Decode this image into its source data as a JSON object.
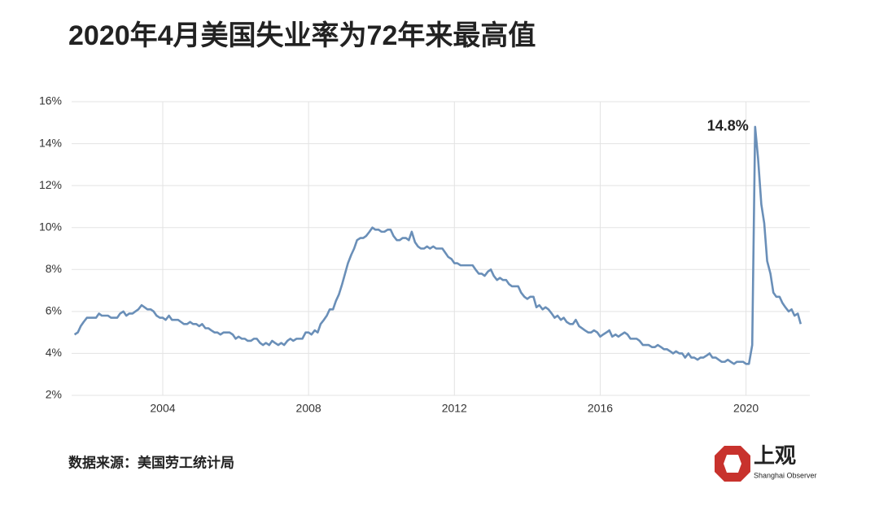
{
  "chart_data": {
    "type": "line",
    "title": "2020年4月美国失业率为72年来最高值",
    "source": "数据来源：美国劳工统计局",
    "logo": {
      "text": "上观",
      "subtitle": "Shanghai Observer"
    },
    "color": "#6a8fb8",
    "grid": true,
    "xlim": [
      2001.5,
      2021.75
    ],
    "xticks": [
      2004,
      2008,
      2012,
      2016,
      2020
    ],
    "ylim": [
      2,
      16
    ],
    "yticks": [
      {
        "value": 2,
        "label": "2%"
      },
      {
        "value": 4,
        "label": "4%"
      },
      {
        "value": 6,
        "label": "6%"
      },
      {
        "value": 8,
        "label": "8%"
      },
      {
        "value": 10,
        "label": "10%"
      },
      {
        "value": 12,
        "label": "12%"
      },
      {
        "value": 14,
        "label": "14%"
      },
      {
        "value": 16,
        "label": "16%"
      }
    ],
    "annotations": [
      {
        "text": "14.8%",
        "x": 2020.25,
        "y": 14.8
      }
    ],
    "x": [
      2001.58,
      2001.67,
      2001.75,
      2001.83,
      2001.92,
      2002.0,
      2002.08,
      2002.17,
      2002.25,
      2002.33,
      2002.42,
      2002.5,
      2002.58,
      2002.67,
      2002.75,
      2002.83,
      2002.92,
      2003.0,
      2003.08,
      2003.17,
      2003.25,
      2003.33,
      2003.42,
      2003.5,
      2003.58,
      2003.67,
      2003.75,
      2003.83,
      2003.92,
      2004.0,
      2004.08,
      2004.17,
      2004.25,
      2004.33,
      2004.42,
      2004.5,
      2004.58,
      2004.67,
      2004.75,
      2004.83,
      2004.92,
      2005.0,
      2005.08,
      2005.17,
      2005.25,
      2005.33,
      2005.42,
      2005.5,
      2005.58,
      2005.67,
      2005.75,
      2005.83,
      2005.92,
      2006.0,
      2006.08,
      2006.17,
      2006.25,
      2006.33,
      2006.42,
      2006.5,
      2006.58,
      2006.67,
      2006.75,
      2006.83,
      2006.92,
      2007.0,
      2007.08,
      2007.17,
      2007.25,
      2007.33,
      2007.42,
      2007.5,
      2007.58,
      2007.67,
      2007.75,
      2007.83,
      2007.92,
      2008.0,
      2008.08,
      2008.17,
      2008.25,
      2008.33,
      2008.42,
      2008.5,
      2008.58,
      2008.67,
      2008.75,
      2008.83,
      2008.92,
      2009.0,
      2009.08,
      2009.17,
      2009.25,
      2009.33,
      2009.42,
      2009.5,
      2009.58,
      2009.67,
      2009.75,
      2009.83,
      2009.92,
      2010.0,
      2010.08,
      2010.17,
      2010.25,
      2010.33,
      2010.42,
      2010.5,
      2010.58,
      2010.67,
      2010.75,
      2010.83,
      2010.92,
      2011.0,
      2011.08,
      2011.17,
      2011.25,
      2011.33,
      2011.42,
      2011.5,
      2011.58,
      2011.67,
      2011.75,
      2011.83,
      2011.92,
      2012.0,
      2012.08,
      2012.17,
      2012.25,
      2012.33,
      2012.42,
      2012.5,
      2012.58,
      2012.67,
      2012.75,
      2012.83,
      2012.92,
      2013.0,
      2013.08,
      2013.17,
      2013.25,
      2013.33,
      2013.42,
      2013.5,
      2013.58,
      2013.67,
      2013.75,
      2013.83,
      2013.92,
      2014.0,
      2014.08,
      2014.17,
      2014.25,
      2014.33,
      2014.42,
      2014.5,
      2014.58,
      2014.67,
      2014.75,
      2014.83,
      2014.92,
      2015.0,
      2015.08,
      2015.17,
      2015.25,
      2015.33,
      2015.42,
      2015.5,
      2015.58,
      2015.67,
      2015.75,
      2015.83,
      2015.92,
      2016.0,
      2016.08,
      2016.17,
      2016.25,
      2016.33,
      2016.42,
      2016.5,
      2016.58,
      2016.67,
      2016.75,
      2016.83,
      2016.92,
      2017.0,
      2017.08,
      2017.17,
      2017.25,
      2017.33,
      2017.42,
      2017.5,
      2017.58,
      2017.67,
      2017.75,
      2017.83,
      2017.92,
      2018.0,
      2018.08,
      2018.17,
      2018.25,
      2018.33,
      2018.42,
      2018.5,
      2018.58,
      2018.67,
      2018.75,
      2018.83,
      2018.92,
      2019.0,
      2019.08,
      2019.17,
      2019.25,
      2019.33,
      2019.42,
      2019.5,
      2019.58,
      2019.67,
      2019.75,
      2019.83,
      2019.92,
      2020.0,
      2020.08,
      2020.17,
      2020.25,
      2020.33,
      2020.42,
      2020.5,
      2020.58,
      2020.67,
      2020.75,
      2020.83,
      2020.92,
      2021.0,
      2021.08,
      2021.17,
      2021.25,
      2021.33,
      2021.42,
      2021.5
    ],
    "values": [
      4.9,
      5.0,
      5.3,
      5.5,
      5.7,
      5.7,
      5.7,
      5.7,
      5.9,
      5.8,
      5.8,
      5.8,
      5.7,
      5.7,
      5.7,
      5.9,
      6.0,
      5.8,
      5.9,
      5.9,
      6.0,
      6.1,
      6.3,
      6.2,
      6.1,
      6.1,
      6.0,
      5.8,
      5.7,
      5.7,
      5.6,
      5.8,
      5.6,
      5.6,
      5.6,
      5.5,
      5.4,
      5.4,
      5.5,
      5.4,
      5.4,
      5.3,
      5.4,
      5.2,
      5.2,
      5.1,
      5.0,
      5.0,
      4.9,
      5.0,
      5.0,
      5.0,
      4.9,
      4.7,
      4.8,
      4.7,
      4.7,
      4.6,
      4.6,
      4.7,
      4.7,
      4.5,
      4.4,
      4.5,
      4.4,
      4.6,
      4.5,
      4.4,
      4.5,
      4.4,
      4.6,
      4.7,
      4.6,
      4.7,
      4.7,
      4.7,
      5.0,
      5.0,
      4.9,
      5.1,
      5.0,
      5.4,
      5.6,
      5.8,
      6.1,
      6.1,
      6.5,
      6.8,
      7.3,
      7.8,
      8.3,
      8.7,
      9.0,
      9.4,
      9.5,
      9.5,
      9.6,
      9.8,
      10.0,
      9.9,
      9.9,
      9.8,
      9.8,
      9.9,
      9.9,
      9.6,
      9.4,
      9.4,
      9.5,
      9.5,
      9.4,
      9.8,
      9.3,
      9.1,
      9.0,
      9.0,
      9.1,
      9.0,
      9.1,
      9.0,
      9.0,
      9.0,
      8.8,
      8.6,
      8.5,
      8.3,
      8.3,
      8.2,
      8.2,
      8.2,
      8.2,
      8.2,
      8.0,
      7.8,
      7.8,
      7.7,
      7.9,
      8.0,
      7.7,
      7.5,
      7.6,
      7.5,
      7.5,
      7.3,
      7.2,
      7.2,
      7.2,
      6.9,
      6.7,
      6.6,
      6.7,
      6.7,
      6.2,
      6.3,
      6.1,
      6.2,
      6.1,
      5.9,
      5.7,
      5.8,
      5.6,
      5.7,
      5.5,
      5.4,
      5.4,
      5.6,
      5.3,
      5.2,
      5.1,
      5.0,
      5.0,
      5.1,
      5.0,
      4.8,
      4.9,
      5.0,
      5.1,
      4.8,
      4.9,
      4.8,
      4.9,
      5.0,
      4.9,
      4.7,
      4.7,
      4.7,
      4.6,
      4.4,
      4.4,
      4.4,
      4.3,
      4.3,
      4.4,
      4.3,
      4.2,
      4.2,
      4.1,
      4.0,
      4.1,
      4.0,
      4.0,
      3.8,
      4.0,
      3.8,
      3.8,
      3.7,
      3.8,
      3.8,
      3.9,
      4.0,
      3.8,
      3.8,
      3.7,
      3.6,
      3.6,
      3.7,
      3.6,
      3.5,
      3.6,
      3.6,
      3.6,
      3.5,
      3.5,
      4.4,
      14.8,
      13.3,
      11.1,
      10.2,
      8.4,
      7.8,
      6.9,
      6.7,
      6.7,
      6.4,
      6.2,
      6.0,
      6.1,
      5.8,
      5.9,
      5.4
    ]
  }
}
